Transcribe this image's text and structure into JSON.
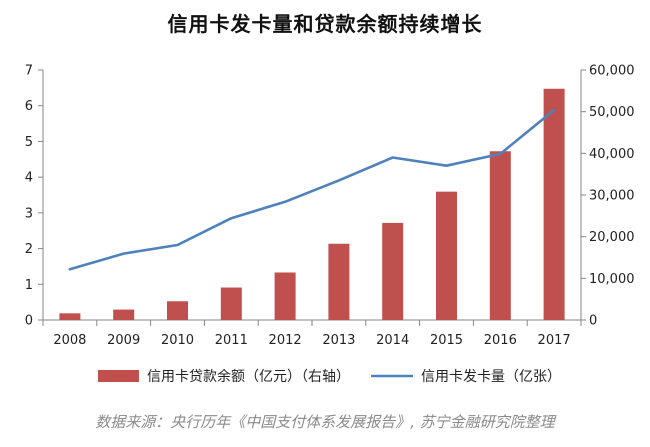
{
  "chart_data": {
    "type": "bar",
    "title": "信用卡发卡量和贷款余额持续增长",
    "categories": [
      "2008",
      "2009",
      "2010",
      "2011",
      "2012",
      "2013",
      "2014",
      "2015",
      "2016",
      "2017"
    ],
    "series": [
      {
        "name": "信用卡贷款余额（亿元）（右轴）",
        "type": "bar",
        "axis": "right",
        "color": "#c0504d",
        "values": [
          1600,
          2500,
          4500,
          7800,
          11400,
          18300,
          23300,
          30800,
          40500,
          55500
        ]
      },
      {
        "name": "信用卡发卡量（亿张）",
        "type": "line",
        "axis": "left",
        "color": "#4f81bd",
        "values": [
          1.42,
          1.86,
          2.1,
          2.85,
          3.31,
          3.91,
          4.55,
          4.32,
          4.65,
          5.88
        ]
      }
    ],
    "y_left": {
      "min": 0,
      "max": 7,
      "ticks": [
        0,
        1,
        2,
        3,
        4,
        5,
        6,
        7
      ],
      "tick_labels": [
        "0",
        "1",
        "2",
        "3",
        "4",
        "5",
        "6",
        "7"
      ]
    },
    "y_right": {
      "min": 0,
      "max": 60000,
      "ticks": [
        0,
        10000,
        20000,
        30000,
        40000,
        50000,
        60000
      ],
      "tick_labels": [
        "0",
        "10,000",
        "20,000",
        "30,000",
        "40,000",
        "50,000",
        "60,000"
      ]
    },
    "grid": false,
    "legend_position": "bottom"
  },
  "source_note": "数据来源：央行历年《中国支付体系发展报告》, 苏宁金融研究院整理"
}
